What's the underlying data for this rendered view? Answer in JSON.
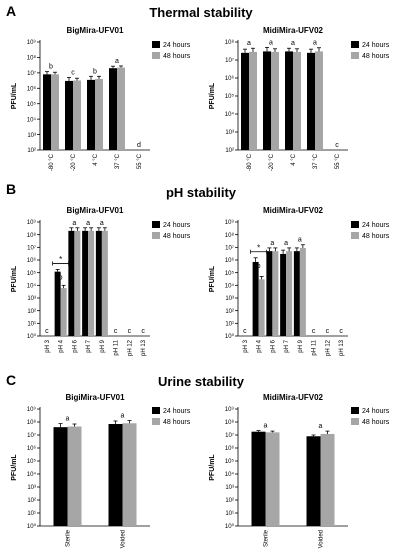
{
  "sections": [
    {
      "letter": "A",
      "title": "Thermal stability"
    },
    {
      "letter": "B",
      "title": "pH stability"
    },
    {
      "letter": "C",
      "title": "Urine stability"
    }
  ],
  "chart_data": [
    {
      "type": "bar",
      "section": "A",
      "title": "BigMira-UFV01",
      "ylabel": "PFU/mL",
      "yscale": "log",
      "ylim": [
        100,
        1000000000
      ],
      "yticks": [
        "10⁹",
        "10⁸",
        "10⁷",
        "10⁶",
        "10⁵",
        "10⁴",
        "10³",
        "10²"
      ],
      "categories": [
        "-80 °C",
        "-20 °C",
        "4 °C",
        "37 °C",
        "55 °C"
      ],
      "series": [
        {
          "name": "24 hours",
          "color": "#000000",
          "values": [
            8000000,
            3000000,
            3500000,
            20000000,
            0
          ],
          "err_upper": [
            12000000,
            5000000,
            6000000,
            27000000,
            0
          ]
        },
        {
          "name": "48 hours",
          "color": "#a6a6a6",
          "values": [
            8000000,
            3200000,
            4000000,
            22000000,
            0
          ],
          "err_upper": [
            11000000,
            4500000,
            6000000,
            28000000,
            0
          ]
        }
      ],
      "letters": [
        "b",
        "c",
        "b",
        "a",
        "d"
      ],
      "legend": "top-right"
    },
    {
      "type": "bar",
      "section": "A",
      "title": "MidiMira-UFV02",
      "ylabel": "PFU/mL",
      "yscale": "log",
      "ylim": [
        100,
        100000000
      ],
      "yticks": [
        "10⁸",
        "10⁷",
        "10⁶",
        "10⁵",
        "10⁴",
        "10³",
        "10²"
      ],
      "categories": [
        "-80 °C",
        "-20 °C",
        "4 °C",
        "37 °C",
        "55 °C"
      ],
      "series": [
        {
          "name": "24 hours",
          "color": "#000000",
          "values": [
            25000000,
            30000000,
            30000000,
            25000000,
            0
          ],
          "err_upper": [
            40000000,
            50000000,
            45000000,
            40000000,
            0
          ]
        },
        {
          "name": "48 hours",
          "color": "#a6a6a6",
          "values": [
            28000000,
            28000000,
            28000000,
            30000000,
            0
          ],
          "err_upper": [
            45000000,
            42000000,
            42000000,
            48000000,
            0
          ]
        }
      ],
      "letters": [
        "a",
        "a",
        "a",
        "a",
        "c"
      ],
      "legend": "top-right"
    },
    {
      "type": "bar",
      "section": "B",
      "title": "BigMira-UFV01",
      "ylabel": "PFU/mL",
      "yscale": "log",
      "ylim": [
        1,
        1000000000
      ],
      "yticks": [
        "10⁹",
        "10⁸",
        "10⁷",
        "10⁶",
        "10⁵",
        "10⁴",
        "10³",
        "10²",
        "10¹",
        "10⁰"
      ],
      "categories": [
        "pH 3",
        "pH 4",
        "pH 6",
        "pH 7",
        "pH 9",
        "pH 11",
        "pH 12",
        "pH 13"
      ],
      "series": [
        {
          "name": "24 hours",
          "color": "#000000",
          "values": [
            0,
            120000,
            200000000,
            200000000,
            200000000,
            0,
            0,
            0
          ],
          "err_upper": [
            0,
            180000,
            350000000,
            350000000,
            350000000,
            0,
            0,
            0
          ]
        },
        {
          "name": "48 hours",
          "color": "#a6a6a6",
          "values": [
            0,
            6000,
            200000000,
            200000000,
            200000000,
            0,
            0,
            0
          ],
          "err_upper": [
            0,
            10000,
            350000000,
            350000000,
            350000000,
            0,
            0,
            0
          ]
        }
      ],
      "letters": [
        "c",
        "b",
        "a",
        "a",
        "a",
        "c",
        "c",
        "c"
      ],
      "annotation": "*",
      "legend": "top-right"
    },
    {
      "type": "bar",
      "section": "B",
      "title": "MidiMira-UFV02",
      "ylabel": "PFU/mL",
      "yscale": "log",
      "ylim": [
        1,
        1000000000
      ],
      "yticks": [
        "10⁹",
        "10⁸",
        "10⁷",
        "10⁶",
        "10⁵",
        "10⁴",
        "10³",
        "10²",
        "10¹",
        "10⁰"
      ],
      "categories": [
        "pH 3",
        "pH 4",
        "pH 6",
        "pH 7",
        "pH 9",
        "pH 11",
        "pH 12",
        "pH 13"
      ],
      "series": [
        {
          "name": "24 hours",
          "color": "#000000",
          "values": [
            0,
            700000,
            5000000,
            3000000,
            5000000,
            0,
            0,
            0
          ],
          "err_upper": [
            0,
            1500000,
            9000000,
            6000000,
            9000000,
            0,
            0,
            0
          ]
        },
        {
          "name": "48 hours",
          "color": "#a6a6a6",
          "values": [
            0,
            30000,
            5000000,
            5000000,
            9000000,
            0,
            0,
            0
          ],
          "err_upper": [
            0,
            50000,
            9000000,
            9000000,
            16000000,
            0,
            0,
            0
          ]
        }
      ],
      "letters": [
        "c",
        "b",
        "a",
        "a",
        "a",
        "c",
        "c",
        "c"
      ],
      "annotation": "*",
      "legend": "top-right"
    },
    {
      "type": "bar",
      "section": "C",
      "title": "BigiMira-UFV01",
      "ylabel": "PFU/mL",
      "yscale": "log",
      "ylim": [
        1,
        1000000000
      ],
      "yticks": [
        "10⁹",
        "10⁸",
        "10⁷",
        "10⁶",
        "10⁵",
        "10⁴",
        "10³",
        "10²",
        "10¹",
        "10⁰"
      ],
      "categories": [
        "Sterile",
        "Voided"
      ],
      "series": [
        {
          "name": "24 hours",
          "color": "#000000",
          "values": [
            40000000,
            70000000
          ],
          "err_upper": [
            75000000,
            120000000
          ]
        },
        {
          "name": "48 hours",
          "color": "#a6a6a6",
          "values": [
            45000000,
            80000000
          ],
          "err_upper": [
            70000000,
            130000000
          ]
        }
      ],
      "letters": [
        "a",
        "a"
      ],
      "legend": "top-right"
    },
    {
      "type": "bar",
      "section": "C",
      "title": "MidiMira-UFV02",
      "ylabel": "PFU/mL",
      "yscale": "log",
      "ylim": [
        1,
        1000000000
      ],
      "yticks": [
        "10⁹",
        "10⁸",
        "10⁷",
        "10⁶",
        "10⁵",
        "10⁴",
        "10³",
        "10²",
        "10¹",
        "10⁰"
      ],
      "categories": [
        "Sterile",
        "Voided"
      ],
      "series": [
        {
          "name": "24 hours",
          "color": "#000000",
          "values": [
            18000000,
            8000000
          ],
          "err_upper": [
            22000000,
            10000000
          ]
        },
        {
          "name": "48 hours",
          "color": "#a6a6a6",
          "values": [
            16000000,
            12000000
          ],
          "err_upper": [
            20000000,
            20000000
          ]
        }
      ],
      "letters": [
        "a",
        "a"
      ],
      "legend": "top-right"
    }
  ]
}
